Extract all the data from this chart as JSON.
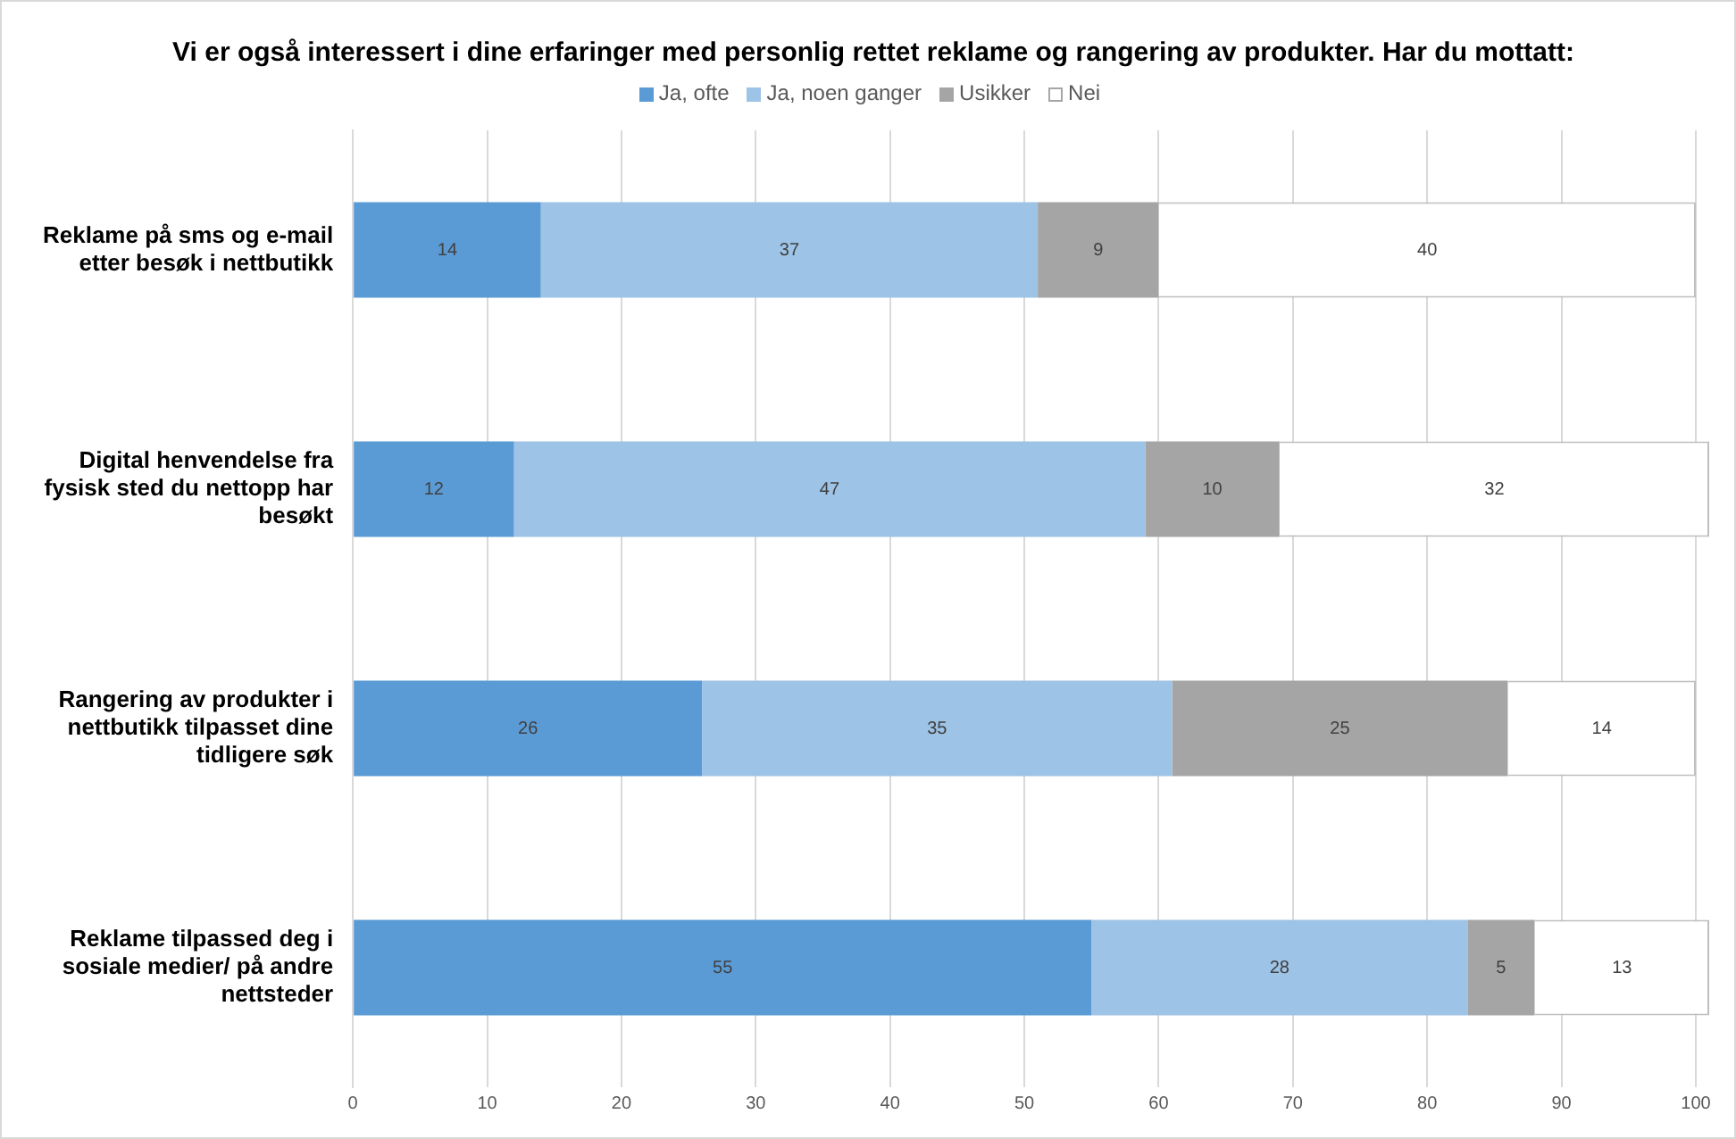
{
  "chart_data": {
    "type": "bar",
    "orientation": "horizontal",
    "stacked": true,
    "title": "Vi er også interessert i dine erfaringer med personlig rettet reklame og rangering av produkter. Har du mottatt:",
    "categories": [
      "Reklame på sms og e-mail etter besøk i nettbutikk",
      "Digital henvendelse fra fysisk sted du nettopp har besøkt",
      "Rangering av produkter i nettbutikk tilpasset dine tidligere søk",
      "Reklame tilpassed deg i sosiale medier/ på andre nettsteder"
    ],
    "series": [
      {
        "name": "Ja, ofte",
        "color": "#5b9bd5",
        "values": [
          14,
          12,
          26,
          55
        ]
      },
      {
        "name": "Ja, noen ganger",
        "color": "#9dc3e6",
        "values": [
          37,
          47,
          35,
          28
        ]
      },
      {
        "name": "Usikker",
        "color": "#a5a5a5",
        "values": [
          9,
          10,
          25,
          5
        ]
      },
      {
        "name": "Nei",
        "color": "#ffffff",
        "values": [
          40,
          32,
          14,
          13
        ]
      }
    ],
    "xlim": [
      0,
      101
    ],
    "xticks": [
      0,
      10,
      20,
      30,
      40,
      50,
      60,
      70,
      80,
      90,
      100
    ],
    "grid": "x",
    "legend": "top",
    "data_labels": true
  }
}
